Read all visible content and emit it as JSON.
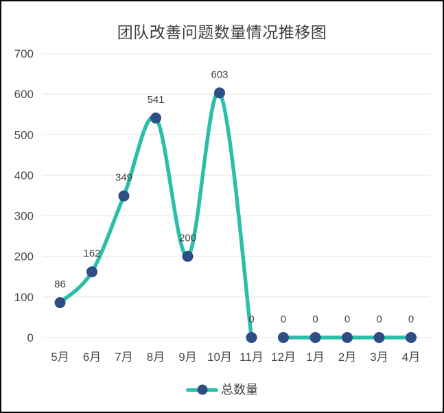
{
  "window": {
    "title": "团队改善问题数量情况推移图"
  },
  "chart_data": {
    "type": "line",
    "title": "团队改善问题数量情况推移图",
    "categories": [
      "5月",
      "6月",
      "7月",
      "8月",
      "9月",
      "10月",
      "11月",
      "12月",
      "1月",
      "2月",
      "3月",
      "4月"
    ],
    "series": [
      {
        "name": "总数量",
        "values": [
          86,
          162,
          349,
          541,
          200,
          603,
          0,
          0,
          0,
          0,
          0,
          0
        ],
        "segments": [
          [
            0,
            6
          ],
          [
            7,
            11
          ]
        ],
        "smooth": true,
        "line_color": "#2bbfaa",
        "marker_color": "#2e4d84"
      }
    ],
    "data_labels": [
      86,
      162,
      349,
      541,
      200,
      603,
      0,
      0,
      0,
      0,
      0,
      0
    ],
    "xlabel": "",
    "ylabel": "",
    "ylim": [
      0,
      700
    ],
    "ytick_step": 100,
    "yticks": [
      0,
      100,
      200,
      300,
      400,
      500,
      600,
      700
    ],
    "grid": "horizontal",
    "grid_color": "#edece7",
    "text_color": "#4a4a4a",
    "legend_position": "bottom"
  },
  "legend": {
    "label": "总数量"
  }
}
